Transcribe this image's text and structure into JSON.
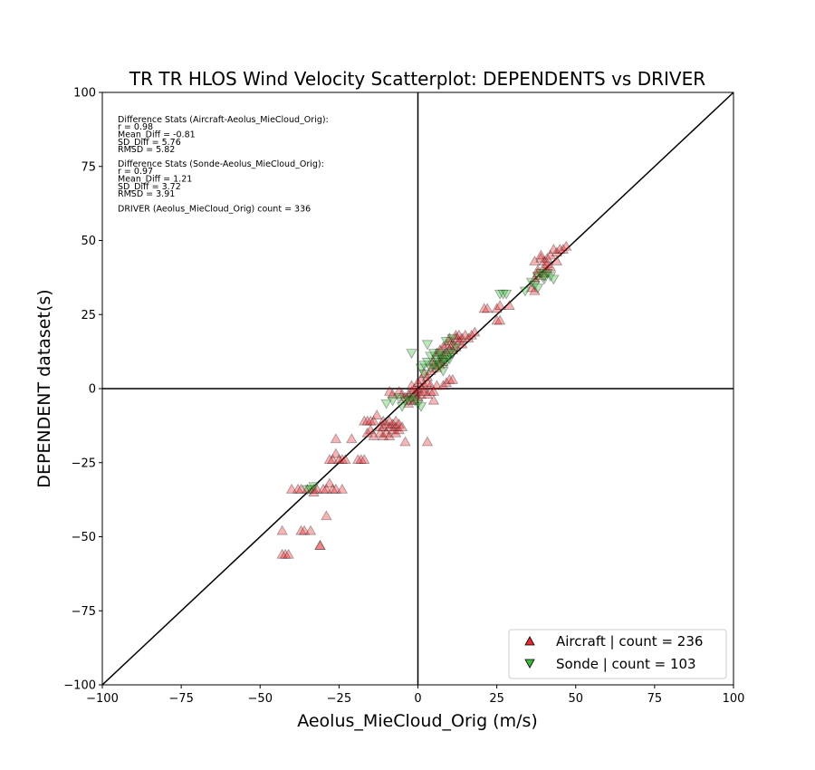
{
  "chart_data": {
    "type": "scatter",
    "title": "TR TR HLOS Wind Velocity Scatterplot: DEPENDENTS vs DRIVER",
    "xlabel": "Aeolus_MieCloud_Orig (m/s)",
    "ylabel": "DEPENDENT dataset(s)",
    "xlim": [
      -100,
      100
    ],
    "ylim": [
      -100,
      100
    ],
    "xticks": [
      -100,
      -75,
      -50,
      -25,
      0,
      25,
      50,
      75,
      100
    ],
    "yticks": [
      -100,
      -75,
      -50,
      -25,
      0,
      25,
      50,
      75,
      100
    ],
    "xtick_labels": [
      "−100",
      "−75",
      "−50",
      "−25",
      "0",
      "25",
      "50",
      "75",
      "100"
    ],
    "ytick_labels": [
      "−100",
      "−75",
      "−50",
      "−25",
      "0",
      "25",
      "50",
      "75",
      "100"
    ],
    "grid": false,
    "legend_position": "bottom-right",
    "annotations": [
      "Difference Stats (Aircraft-Aeolus_MieCloud_Orig):",
      "r = 0.98",
      "Mean_Diff = -0.81",
      "SD_Diff = 5.76",
      "RMSD = 5.82",
      "Difference Stats (Sonde-Aeolus_MieCloud_Orig):",
      "r = 0.97",
      "Mean_Diff = 1.21",
      "SD_Diff = 3.72",
      "RMSD = 3.91",
      "DRIVER (Aeolus_MieCloud_Orig) count = 336"
    ],
    "series": [
      {
        "name": "Aircraft | count = 236",
        "marker": "triangle-up",
        "color": "#e8292e",
        "points": [
          [
            -43,
            -48
          ],
          [
            -43,
            -56
          ],
          [
            -42,
            -56
          ],
          [
            -41,
            -56
          ],
          [
            -40,
            -34
          ],
          [
            -38,
            -34
          ],
          [
            -37,
            -34
          ],
          [
            -37,
            -48
          ],
          [
            -36,
            -48
          ],
          [
            -35,
            -34
          ],
          [
            -34,
            -48
          ],
          [
            -33,
            -34
          ],
          [
            -33,
            -35
          ],
          [
            -32,
            -34
          ],
          [
            -31,
            -53
          ],
          [
            -31,
            -53
          ],
          [
            -30,
            -34
          ],
          [
            -29,
            -34
          ],
          [
            -29,
            -43
          ],
          [
            -28,
            -32
          ],
          [
            -28,
            -24
          ],
          [
            -27,
            -24
          ],
          [
            -27,
            -34
          ],
          [
            -26,
            -17
          ],
          [
            -26,
            -22
          ],
          [
            -26,
            -34
          ],
          [
            -25,
            -24
          ],
          [
            -24,
            -34
          ],
          [
            -24,
            -24
          ],
          [
            -23,
            -24
          ],
          [
            -21,
            -17
          ],
          [
            -19,
            -24
          ],
          [
            -18,
            -24
          ],
          [
            -17,
            -24
          ],
          [
            -17,
            -11
          ],
          [
            -16,
            -11
          ],
          [
            -16,
            -15
          ],
          [
            -15,
            -11
          ],
          [
            -15,
            -14
          ],
          [
            -14,
            -11
          ],
          [
            -14,
            -16
          ],
          [
            -13,
            -9
          ],
          [
            -12,
            -13
          ],
          [
            -12,
            -15
          ],
          [
            -11,
            -11
          ],
          [
            -11,
            -13
          ],
          [
            -11,
            -16
          ],
          [
            -10,
            -12
          ],
          [
            -10,
            -15
          ],
          [
            -9,
            -11
          ],
          [
            -9,
            -13
          ],
          [
            -9,
            -16
          ],
          [
            -9,
            -1
          ],
          [
            -8,
            -2
          ],
          [
            -8,
            -12
          ],
          [
            -8,
            -14
          ],
          [
            -7,
            -11
          ],
          [
            -7,
            -13
          ],
          [
            -7,
            -15
          ],
          [
            -6,
            -12
          ],
          [
            -6,
            -14
          ],
          [
            -6,
            -1
          ],
          [
            -5,
            -2
          ],
          [
            -5,
            -13
          ],
          [
            -4,
            -3
          ],
          [
            -4,
            -18
          ],
          [
            -3,
            -2
          ],
          [
            -3,
            -5
          ],
          [
            -2,
            -4
          ],
          [
            -2,
            -1
          ],
          [
            -2,
            1
          ],
          [
            -1,
            -2
          ],
          [
            -1,
            -4
          ],
          [
            -1,
            0
          ],
          [
            0,
            -3
          ],
          [
            0,
            -1
          ],
          [
            0,
            2
          ],
          [
            1,
            0
          ],
          [
            1,
            3
          ],
          [
            1,
            -2
          ],
          [
            2,
            1
          ],
          [
            2,
            -1
          ],
          [
            2,
            5
          ],
          [
            3,
            -2
          ],
          [
            3,
            2
          ],
          [
            3,
            -18
          ],
          [
            3,
            4
          ],
          [
            4,
            1
          ],
          [
            4,
            6
          ],
          [
            4,
            -1
          ],
          [
            5,
            -1
          ],
          [
            5,
            8
          ],
          [
            5,
            9
          ],
          [
            5,
            -4
          ],
          [
            6,
            7
          ],
          [
            6,
            12
          ],
          [
            6,
            1
          ],
          [
            7,
            10
          ],
          [
            7,
            13
          ],
          [
            7,
            8
          ],
          [
            8,
            11
          ],
          [
            8,
            14
          ],
          [
            8,
            1
          ],
          [
            8,
            9
          ],
          [
            9,
            12
          ],
          [
            9,
            15
          ],
          [
            9,
            2
          ],
          [
            10,
            16
          ],
          [
            10,
            17
          ],
          [
            10,
            3
          ],
          [
            10,
            13
          ],
          [
            11,
            3
          ],
          [
            11,
            13
          ],
          [
            11,
            15
          ],
          [
            12,
            17
          ],
          [
            12,
            14
          ],
          [
            12,
            18
          ],
          [
            13,
            16
          ],
          [
            13,
            18
          ],
          [
            14,
            15
          ],
          [
            14,
            17
          ],
          [
            15,
            18
          ],
          [
            16,
            17
          ],
          [
            17,
            18
          ],
          [
            18,
            19
          ],
          [
            21,
            27
          ],
          [
            22,
            27
          ],
          [
            25,
            27
          ],
          [
            25,
            23
          ],
          [
            26,
            23
          ],
          [
            26,
            28
          ],
          [
            29,
            28
          ],
          [
            36,
            34
          ],
          [
            37,
            33
          ],
          [
            37,
            37
          ],
          [
            37,
            43
          ],
          [
            38,
            39
          ],
          [
            38,
            40
          ],
          [
            39,
            38
          ],
          [
            39,
            44
          ],
          [
            39,
            45
          ],
          [
            40,
            39
          ],
          [
            40,
            41
          ],
          [
            40,
            43
          ],
          [
            41,
            40
          ],
          [
            41,
            42
          ],
          [
            41,
            44
          ],
          [
            42,
            45
          ],
          [
            42,
            41
          ],
          [
            43,
            47
          ],
          [
            44,
            46
          ],
          [
            44,
            43
          ],
          [
            45,
            47
          ],
          [
            46,
            47
          ],
          [
            47,
            48
          ]
        ]
      },
      {
        "name": "Sonde | count = 103",
        "marker": "triangle-down",
        "color": "#3cba3c",
        "points": [
          [
            -35,
            -34
          ],
          [
            -34,
            -34
          ],
          [
            -33,
            -33
          ],
          [
            -10,
            -5
          ],
          [
            -8,
            -4
          ],
          [
            -6,
            -3
          ],
          [
            -5,
            -6
          ],
          [
            -4,
            -4
          ],
          [
            -3,
            -4
          ],
          [
            -2,
            -3
          ],
          [
            -2,
            12
          ],
          [
            -1,
            -4
          ],
          [
            0,
            -5
          ],
          [
            1,
            -6
          ],
          [
            1,
            7
          ],
          [
            2,
            5
          ],
          [
            2,
            8
          ],
          [
            3,
            15
          ],
          [
            3,
            9
          ],
          [
            4,
            11
          ],
          [
            4,
            7
          ],
          [
            5,
            8
          ],
          [
            5,
            12
          ],
          [
            6,
            9
          ],
          [
            6,
            10
          ],
          [
            6,
            7
          ],
          [
            7,
            8
          ],
          [
            7,
            11
          ],
          [
            7,
            12
          ],
          [
            8,
            9
          ],
          [
            8,
            10
          ],
          [
            8,
            6
          ],
          [
            9,
            11
          ],
          [
            9,
            9
          ],
          [
            9,
            16
          ],
          [
            10,
            10
          ],
          [
            10,
            12
          ],
          [
            11,
            12
          ],
          [
            11,
            17
          ],
          [
            12,
            14
          ],
          [
            26,
            32
          ],
          [
            27,
            32
          ],
          [
            28,
            32
          ],
          [
            34,
            33
          ],
          [
            36,
            36
          ],
          [
            37,
            35
          ],
          [
            38,
            38
          ],
          [
            38,
            34
          ],
          [
            39,
            39
          ],
          [
            40,
            37
          ],
          [
            40,
            38
          ],
          [
            41,
            39
          ],
          [
            42,
            38
          ],
          [
            43,
            37
          ]
        ]
      }
    ]
  }
}
